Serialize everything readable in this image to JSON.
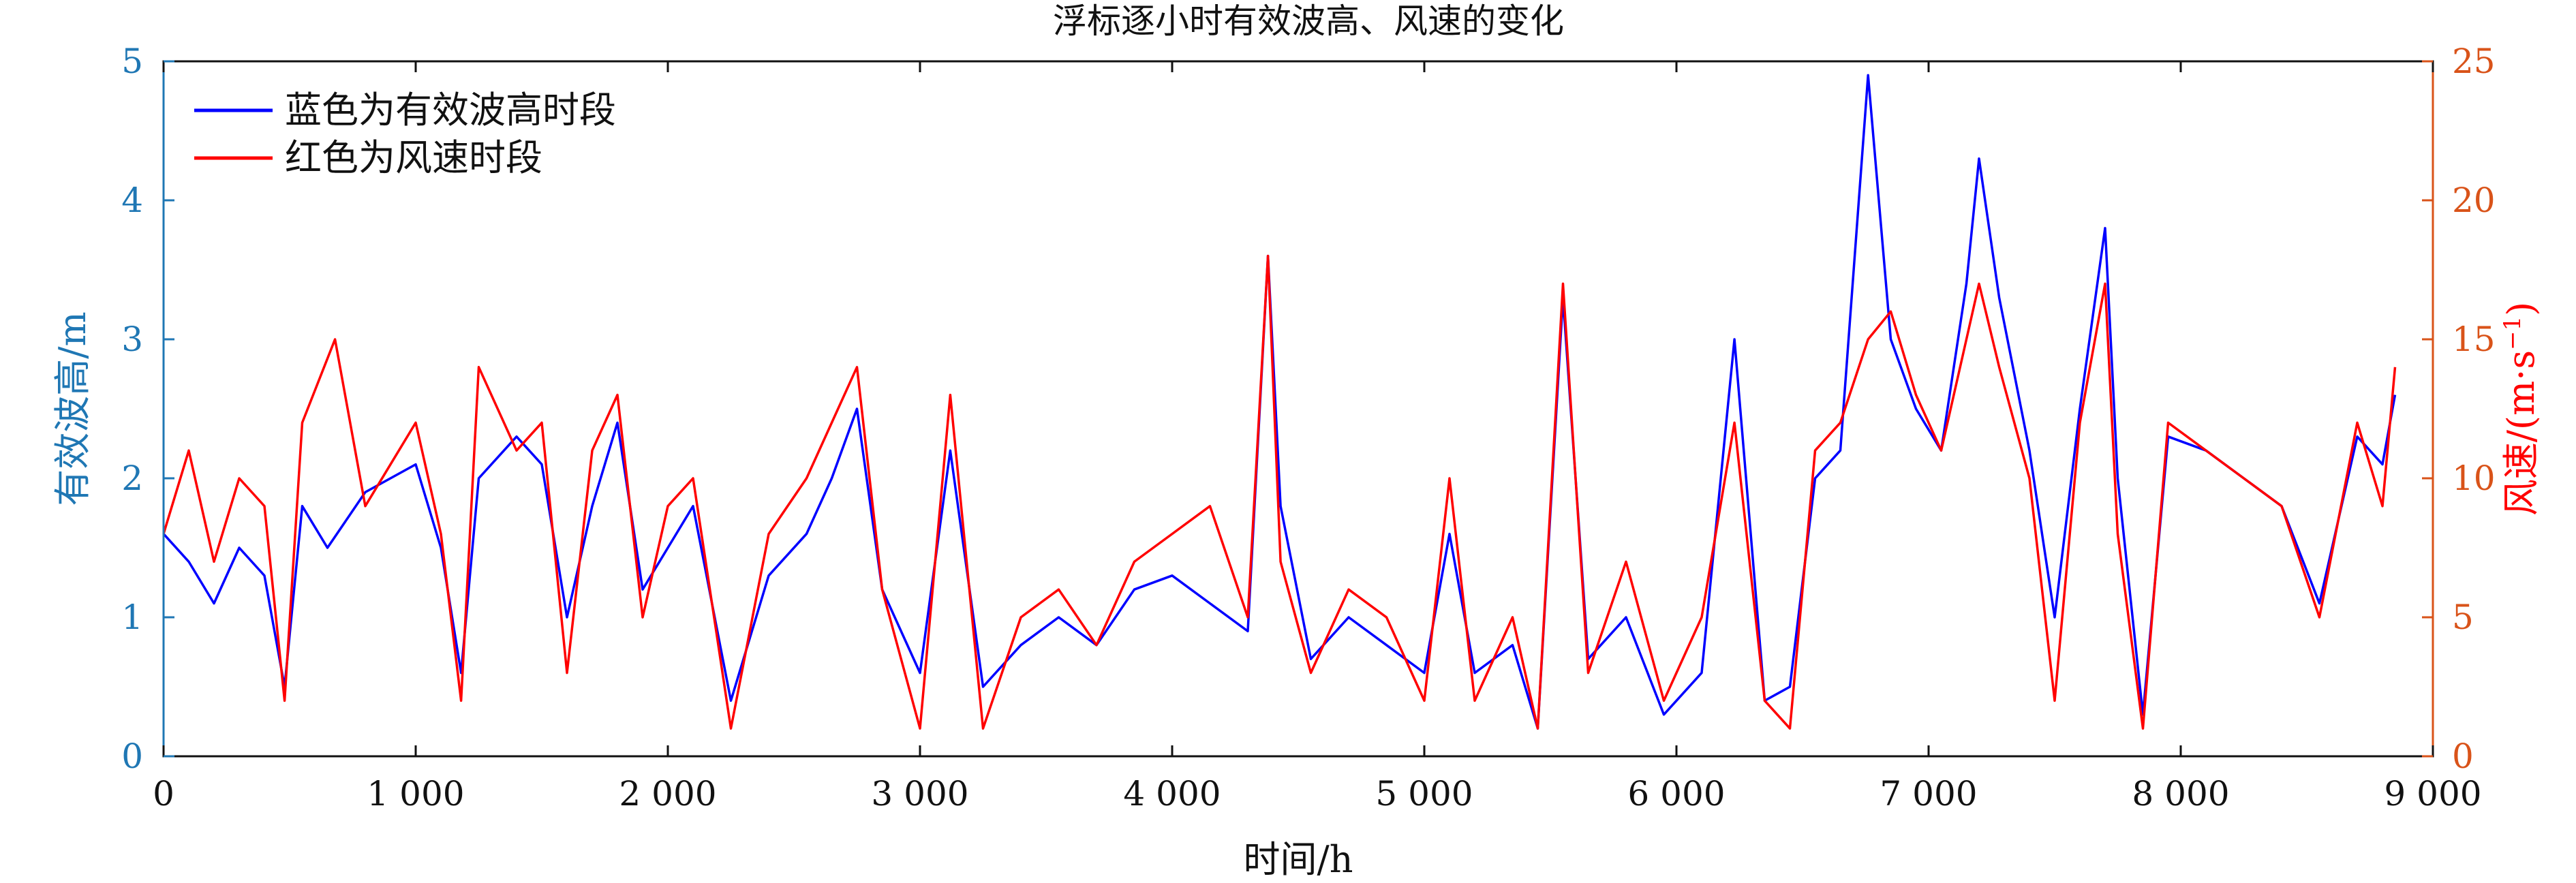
{
  "chart_data": {
    "type": "line",
    "title": "浮标逐小时有效波高、风速的变化",
    "xlabel": "时间/h",
    "ylabel_left": "有效波高/m",
    "ylabel_right_prefix": "风速/(m·s",
    "ylabel_right_superscript": "−1",
    "ylabel_right_suffix": ")",
    "xlim": [
      0,
      9000
    ],
    "ylim_left": [
      0,
      5
    ],
    "ylim_right": [
      0,
      25
    ],
    "x_ticks": [
      0,
      1000,
      2000,
      3000,
      4000,
      5000,
      6000,
      7000,
      8000,
      9000
    ],
    "x_tick_labels": [
      "0",
      "1 000",
      "2 000",
      "3 000",
      "4 000",
      "5 000",
      "6 000",
      "7 000",
      "8 000",
      "9 000"
    ],
    "y_left_ticks": [
      0,
      1,
      2,
      3,
      4,
      5
    ],
    "y_left_tick_labels": [
      "0",
      "1",
      "2",
      "3",
      "4",
      "5"
    ],
    "y_right_ticks": [
      0,
      5,
      10,
      15,
      20,
      25
    ],
    "y_right_tick_labels": [
      "0",
      "5",
      "10",
      "15",
      "20",
      "25"
    ],
    "grid": false,
    "legend_position": "top-left",
    "colors": {
      "left_axis": "#1f77b4",
      "right_axis": "#d95319",
      "wave": "#0000ff",
      "wind": "#ff0000"
    },
    "series": [
      {
        "name": "蓝色为有效波高时段",
        "axis": "left",
        "color": "#0000ff",
        "x": [
          0,
          100,
          200,
          300,
          400,
          480,
          550,
          650,
          800,
          1000,
          1100,
          1180,
          1250,
          1400,
          1500,
          1600,
          1700,
          1800,
          1900,
          2000,
          2100,
          2250,
          2400,
          2550,
          2650,
          2750,
          2850,
          3000,
          3120,
          3250,
          3400,
          3550,
          3700,
          3850,
          4000,
          4150,
          4300,
          4380,
          4430,
          4550,
          4700,
          4850,
          5000,
          5100,
          5200,
          5350,
          5450,
          5550,
          5650,
          5800,
          5950,
          6100,
          6230,
          6350,
          6450,
          6550,
          6650,
          6760,
          6850,
          6950,
          7050,
          7150,
          7200,
          7280,
          7400,
          7500,
          7600,
          7700,
          7750,
          7850,
          7950,
          8100,
          8250,
          8400,
          8550,
          8700,
          8800,
          8850
        ],
        "values": [
          1.6,
          1.4,
          1.1,
          1.5,
          1.3,
          0.5,
          1.8,
          1.5,
          1.9,
          2.1,
          1.5,
          0.6,
          2.0,
          2.3,
          2.1,
          1.0,
          1.8,
          2.4,
          1.2,
          1.5,
          1.8,
          0.4,
          1.3,
          1.6,
          2.0,
          2.5,
          1.2,
          0.6,
          2.2,
          0.5,
          0.8,
          1.0,
          0.8,
          1.2,
          1.3,
          1.1,
          0.9,
          3.6,
          1.8,
          0.7,
          1.0,
          0.8,
          0.6,
          1.6,
          0.6,
          0.8,
          0.2,
          3.3,
          0.7,
          1.0,
          0.3,
          0.6,
          3.0,
          0.4,
          0.5,
          2.0,
          2.2,
          4.9,
          3.0,
          2.5,
          2.2,
          3.4,
          4.3,
          3.3,
          2.2,
          1.0,
          2.5,
          3.8,
          2.0,
          0.3,
          2.3,
          2.2,
          2.0,
          1.8,
          1.1,
          2.3,
          2.1,
          2.6
        ]
      },
      {
        "name": "红色为风速时段",
        "axis": "right",
        "color": "#ff0000",
        "x": [
          0,
          100,
          200,
          300,
          400,
          480,
          550,
          680,
          800,
          1000,
          1100,
          1180,
          1250,
          1400,
          1500,
          1600,
          1700,
          1800,
          1900,
          2000,
          2100,
          2250,
          2400,
          2550,
          2650,
          2750,
          2850,
          3000,
          3120,
          3250,
          3400,
          3550,
          3700,
          3850,
          4000,
          4150,
          4300,
          4380,
          4430,
          4550,
          4700,
          4850,
          5000,
          5100,
          5200,
          5350,
          5450,
          5550,
          5650,
          5800,
          5950,
          6100,
          6230,
          6350,
          6450,
          6550,
          6650,
          6760,
          6850,
          6950,
          7050,
          7150,
          7200,
          7280,
          7400,
          7500,
          7600,
          7700,
          7750,
          7850,
          7950,
          8100,
          8250,
          8400,
          8550,
          8700,
          8800,
          8850
        ],
        "values": [
          8,
          11,
          7,
          10,
          9,
          2,
          12,
          15,
          9,
          12,
          8,
          2,
          14,
          11,
          12,
          3,
          11,
          13,
          5,
          9,
          10,
          1,
          8,
          10,
          12,
          14,
          6,
          1,
          13,
          1,
          5,
          6,
          4,
          7,
          8,
          9,
          5,
          18,
          7,
          3,
          6,
          5,
          2,
          10,
          2,
          5,
          1,
          17,
          3,
          7,
          2,
          5,
          12,
          2,
          1,
          11,
          12,
          15,
          16,
          13,
          11,
          15,
          17,
          14,
          10,
          2,
          12,
          17,
          8,
          1,
          12,
          11,
          10,
          9,
          5,
          12,
          9,
          14
        ]
      }
    ]
  }
}
